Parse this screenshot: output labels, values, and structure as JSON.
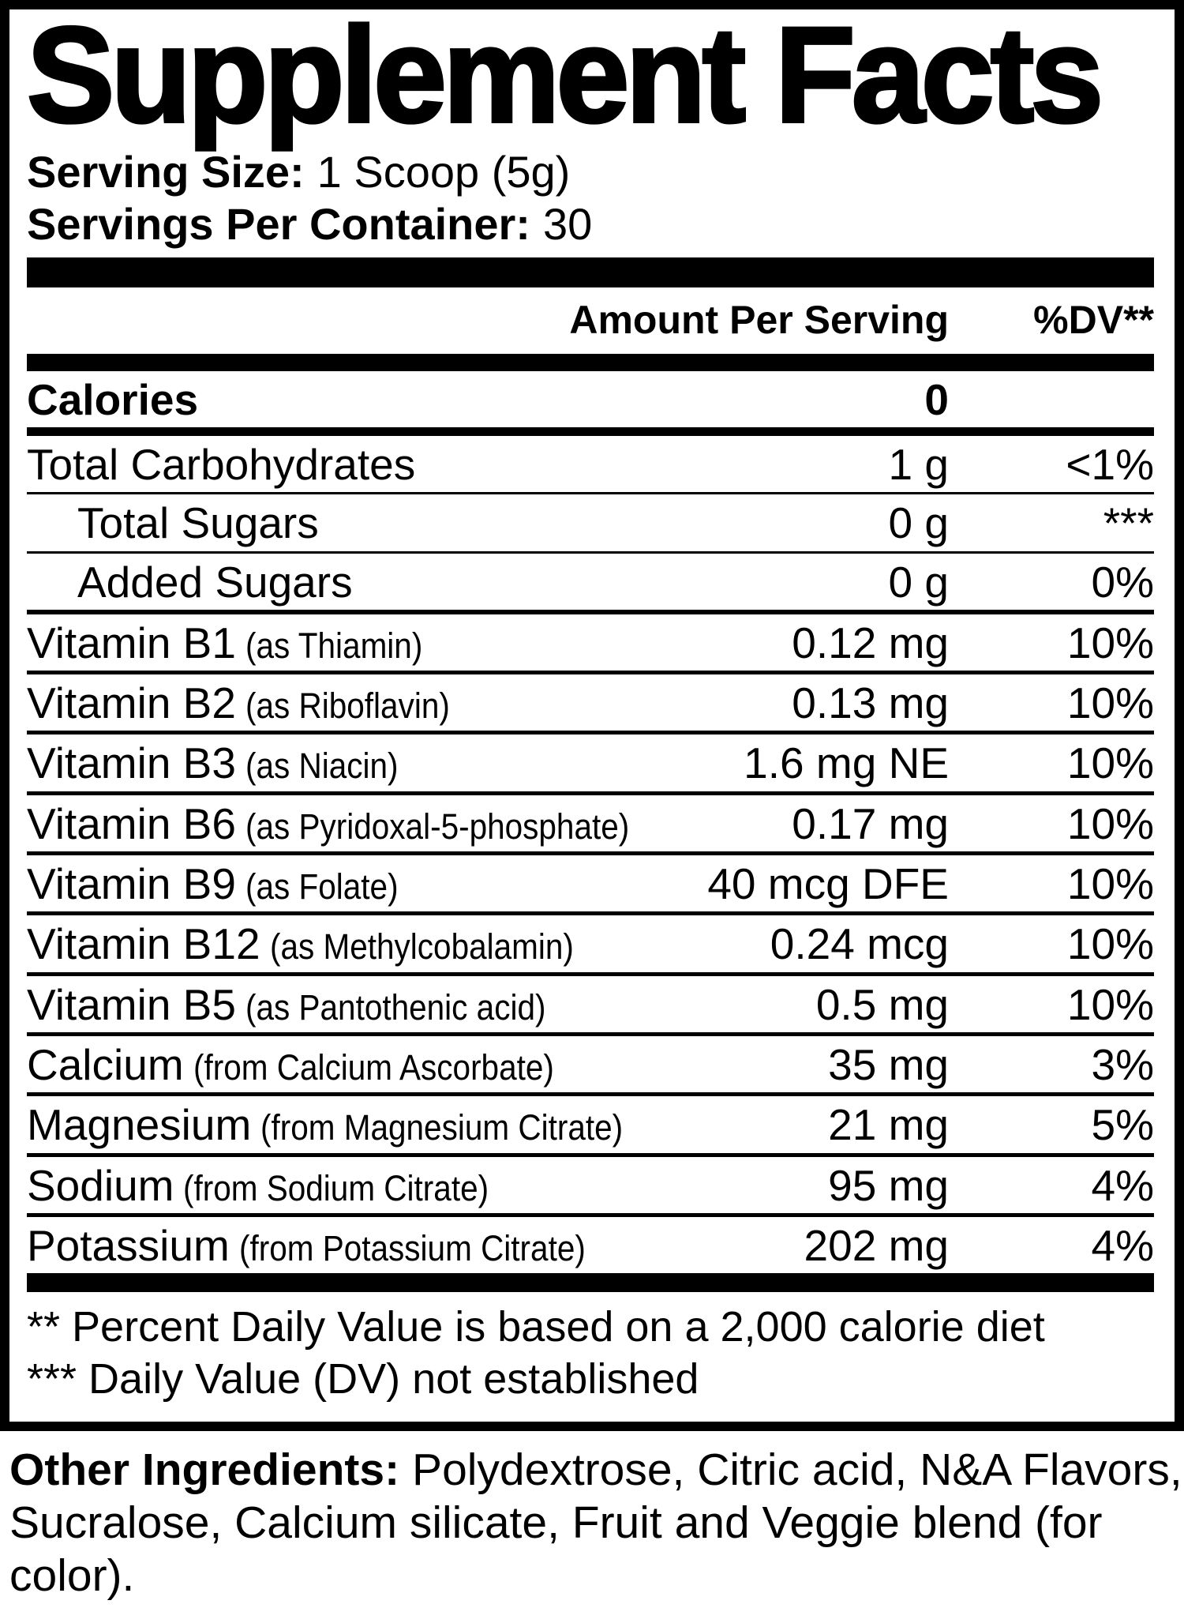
{
  "label": {
    "title": "Supplement Facts",
    "serving_size": {
      "label": "Serving Size:",
      "value": "1 Scoop (5g)"
    },
    "servings_per_container": {
      "label": "Servings Per Container:",
      "value": "30"
    },
    "columns": {
      "amount": "Amount Per Serving",
      "dv": "%DV**"
    },
    "rows": [
      {
        "name": "Calories",
        "amount": "0",
        "dv": ""
      },
      {
        "name": "Total Carbohydrates",
        "amount": "1 g",
        "dv": "<1%"
      },
      {
        "name": "Total Sugars",
        "amount": "0 g",
        "dv": "***"
      },
      {
        "name": "Added Sugars",
        "amount": "0 g",
        "dv": "0%"
      },
      {
        "name": "Vitamin B1",
        "paren": "(as Thiamin)",
        "amount": "0.12 mg",
        "dv": "10%"
      },
      {
        "name": "Vitamin B2",
        "paren": "(as Riboflavin)",
        "amount": "0.13 mg",
        "dv": "10%"
      },
      {
        "name": "Vitamin B3",
        "paren": "(as Niacin)",
        "amount": "1.6 mg NE",
        "dv": "10%"
      },
      {
        "name": "Vitamin B6",
        "paren": "(as Pyridoxal-5-phosphate)",
        "amount": "0.17 mg",
        "dv": "10%"
      },
      {
        "name": "Vitamin B9",
        "paren": "(as Folate)",
        "amount": "40 mcg DFE",
        "dv": "10%"
      },
      {
        "name": "Vitamin B12",
        "paren": "(as Methylcobalamin)",
        "amount": "0.24 mcg",
        "dv": "10%"
      },
      {
        "name": "Vitamin B5",
        "paren": "(as Pantothenic acid)",
        "amount": "0.5 mg",
        "dv": "10%"
      },
      {
        "name": "Calcium",
        "paren": "(from Calcium Ascorbate)",
        "amount": "35 mg",
        "dv": "3%"
      },
      {
        "name": "Magnesium",
        "paren": "(from Magnesium Citrate)",
        "amount": "21 mg",
        "dv": "5%"
      },
      {
        "name": "Sodium",
        "paren": "(from Sodium Citrate)",
        "amount": "95 mg",
        "dv": "4%"
      },
      {
        "name": "Potassium",
        "paren": "(from Potassium Citrate)",
        "amount": "202 mg",
        "dv": "4%"
      }
    ],
    "footnotes": [
      "** Percent Daily Value is based on a 2,000 calorie diet",
      "*** Daily Value (DV) not established"
    ],
    "other_ingredients": {
      "label": "Other Ingredients:",
      "text": "Polydextrose, Citric acid, N&A Flavors, Sucralose, Calcium silicate, Fruit and Veggie blend (for color)."
    },
    "colors": {
      "ink": "#000000",
      "background": "#ffffff"
    }
  }
}
